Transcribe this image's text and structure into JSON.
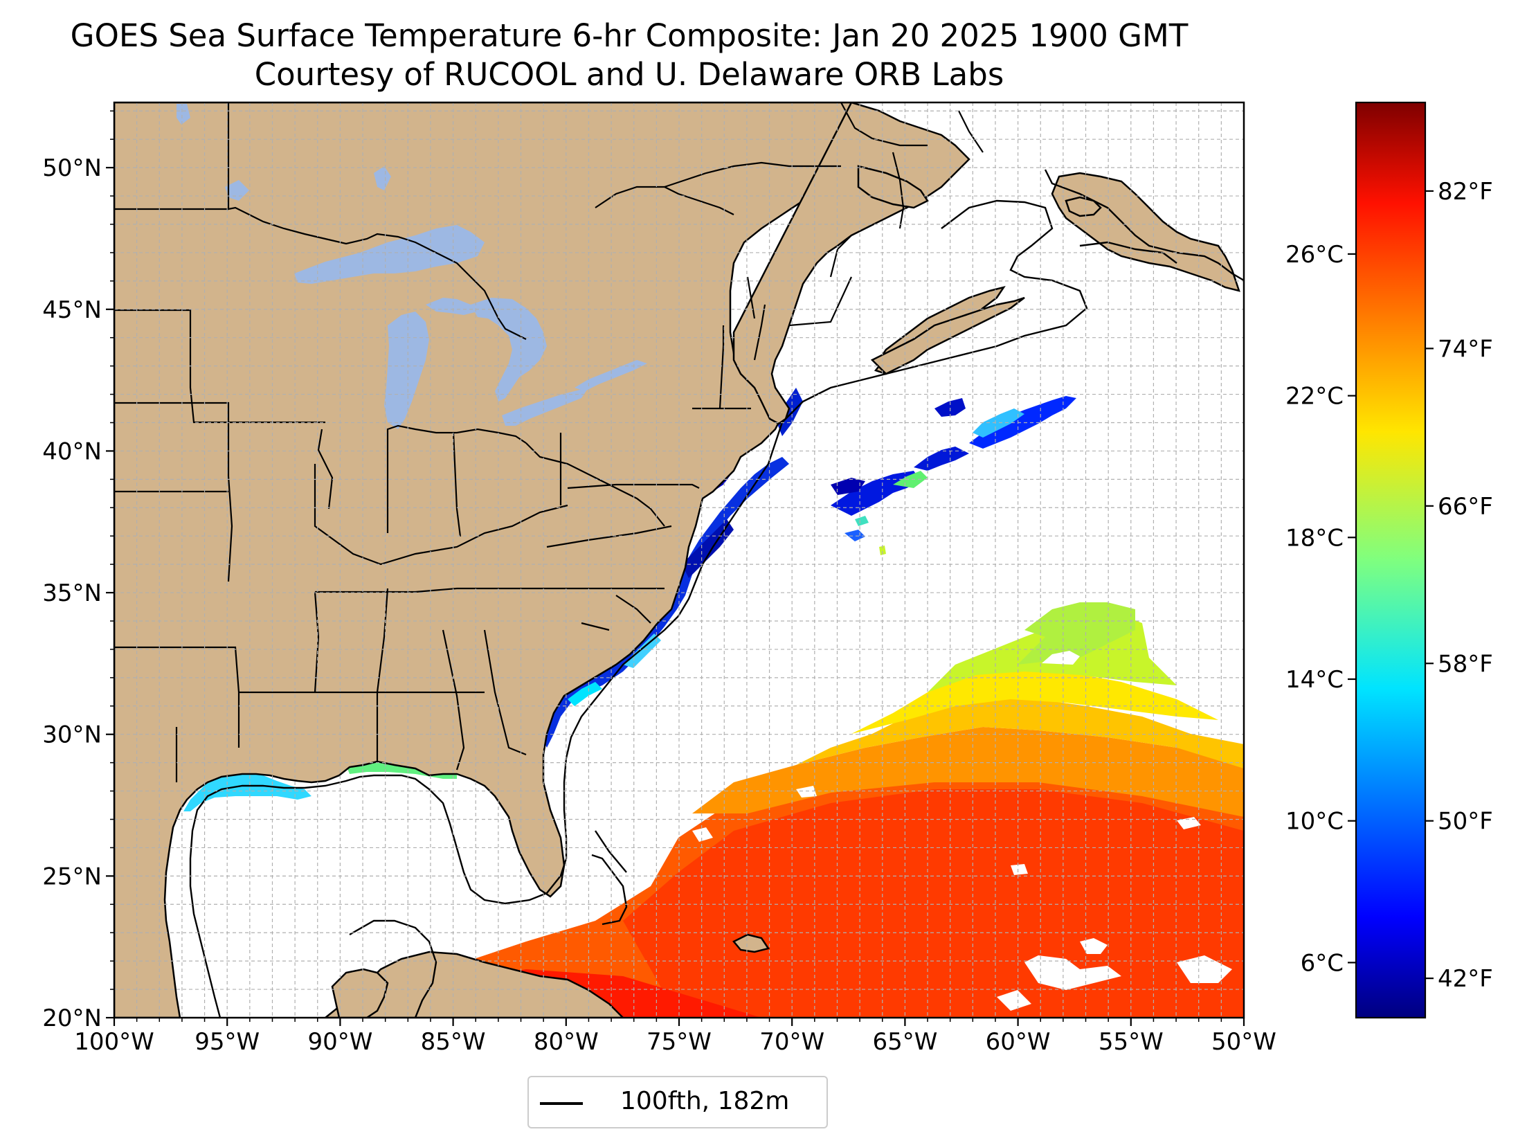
{
  "title": "GOES Sea Surface Temperature 6-hr Composite: Jan 20 2025 1900 GMT",
  "subtitle": "Courtesy of RUCOOL and U. Delaware ORB Labs",
  "map": {
    "extent": {
      "lon_min": -100,
      "lon_max": -50,
      "lat_min": 20,
      "lat_max": 52.3
    },
    "lon_ticks": [
      {
        "value": -100,
        "label": "100°W"
      },
      {
        "value": -95,
        "label": "95°W"
      },
      {
        "value": -90,
        "label": "90°W"
      },
      {
        "value": -85,
        "label": "85°W"
      },
      {
        "value": -80,
        "label": "80°W"
      },
      {
        "value": -75,
        "label": "75°W"
      },
      {
        "value": -70,
        "label": "70°W"
      },
      {
        "value": -65,
        "label": "65°W"
      },
      {
        "value": -60,
        "label": "60°W"
      },
      {
        "value": -55,
        "label": "55°W"
      },
      {
        "value": -50,
        "label": "50°W"
      }
    ],
    "lat_ticks": [
      {
        "value": 20,
        "label": "20°N"
      },
      {
        "value": 25,
        "label": "25°N"
      },
      {
        "value": 30,
        "label": "30°N"
      },
      {
        "value": 35,
        "label": "35°N"
      },
      {
        "value": 40,
        "label": "40°N"
      },
      {
        "value": 45,
        "label": "45°N"
      },
      {
        "value": 50,
        "label": "50°N"
      }
    ],
    "grid_step_deg": 1,
    "colors": {
      "land": "#d2b48c",
      "lakes": "#9db8e3",
      "ocean_nodata": "#ffffff",
      "grid": "#b0b0b0",
      "borders": "#000000"
    }
  },
  "colorbar": {
    "range_f": [
      40.0,
      86.5
    ],
    "celsius_ticks": [
      {
        "value": 6,
        "label": "6°C"
      },
      {
        "value": 10,
        "label": "10°C"
      },
      {
        "value": 14,
        "label": "14°C"
      },
      {
        "value": 18,
        "label": "18°C"
      },
      {
        "value": 22,
        "label": "22°C"
      },
      {
        "value": 26,
        "label": "26°C"
      }
    ],
    "fahrenheit_ticks": [
      {
        "value": 42,
        "label": "42°F"
      },
      {
        "value": 50,
        "label": "50°F"
      },
      {
        "value": 58,
        "label": "58°F"
      },
      {
        "value": 66,
        "label": "66°F"
      },
      {
        "value": 74,
        "label": "74°F"
      },
      {
        "value": 82,
        "label": "82°F"
      }
    ],
    "colormap": "jet"
  },
  "legend": {
    "label": "100fth, 182m"
  }
}
